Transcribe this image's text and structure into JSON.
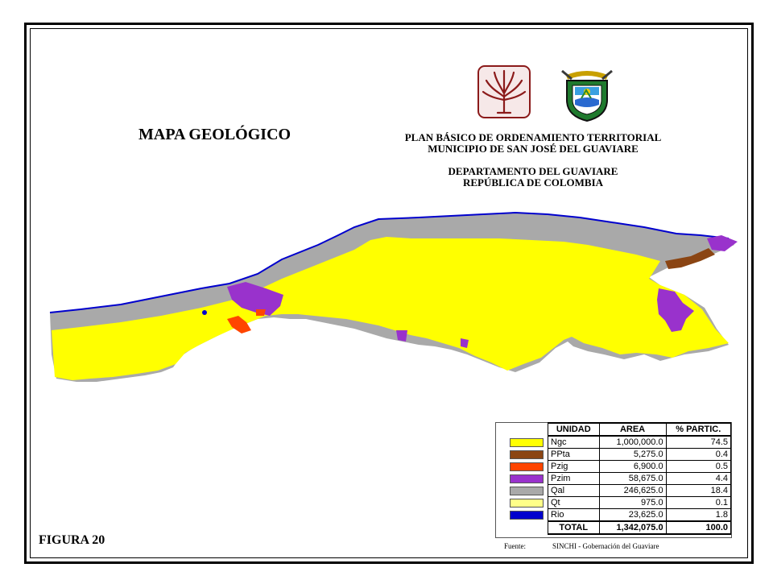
{
  "map": {
    "title": "MAPA GEOLÓGICO",
    "header": {
      "line1": "PLAN BÁSICO DE ORDENAMIENTO TERRITORIAL",
      "line2": "MUNICIPIO DE SAN JOSÉ DEL GUAVIARE",
      "line3": "DEPARTAMENTO DEL GUAVIARE",
      "line4": "REPÚBLICA DE COLOMBIA"
    },
    "figure_label": "FIGURA  20",
    "source_label": "Fuente:",
    "source_text": "SINCHI - Gobernación del Guaviare",
    "colors": {
      "Ngc": "#ffff00",
      "PPta": "#8b4513",
      "Pzig": "#ff4500",
      "Pzim": "#9932cc",
      "Qal": "#a9a9a9",
      "Qt": "#ffff88",
      "Rio": "#0000cd"
    }
  },
  "legend": {
    "headers": [
      "UNIDAD",
      "AREA",
      "% PARTIC."
    ],
    "rows": [
      {
        "unit": "Ngc",
        "area": "1,000,000.0",
        "pct": "74.5",
        "color": "#ffff00"
      },
      {
        "unit": "PPta",
        "area": "5,275.0",
        "pct": "0.4",
        "color": "#8b4513"
      },
      {
        "unit": "Pzig",
        "area": "6,900.0",
        "pct": "0.5",
        "color": "#ff4500"
      },
      {
        "unit": "Pzim",
        "area": "58,675.0",
        "pct": "4.4",
        "color": "#9932cc"
      },
      {
        "unit": "Qal",
        "area": "246,625.0",
        "pct": "18.4",
        "color": "#a9a9a9"
      },
      {
        "unit": "Qt",
        "area": "975.0",
        "pct": "0.1",
        "color": "#ffff88"
      },
      {
        "unit": "Rio",
        "area": "23,625.0",
        "pct": "1.8",
        "color": "#0000cd"
      }
    ],
    "total": {
      "label": "TOTAL",
      "area": "1,342,075.0",
      "pct": "100.0"
    }
  }
}
